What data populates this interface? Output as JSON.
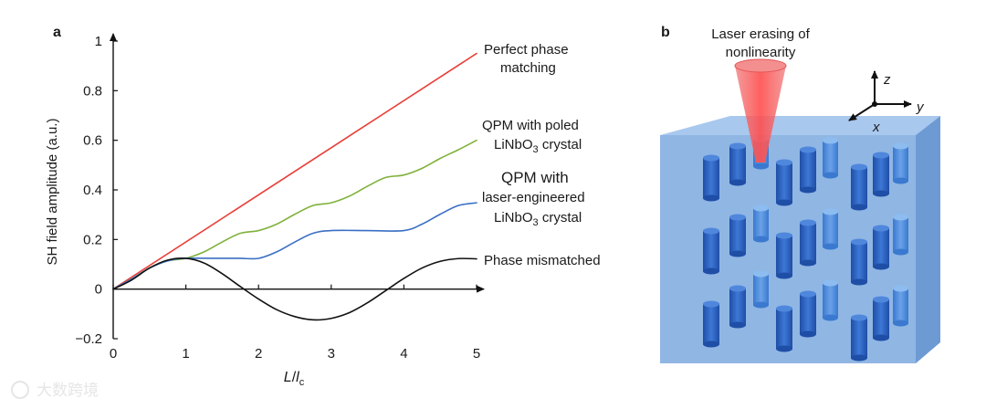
{
  "panels": {
    "a": "a",
    "b": "b"
  },
  "chart_data": {
    "type": "line",
    "xlabel": {
      "main": "L",
      "sep": "/",
      "main2": "l",
      "sub": "c"
    },
    "ylabel": "SH field amplitude (a.u.)",
    "xlim": [
      0,
      5
    ],
    "ylim": [
      -0.2,
      1.0
    ],
    "xticks": [
      "0",
      "1",
      "2",
      "3",
      "4",
      "5"
    ],
    "yticks": [
      {
        "v": 1.0,
        "t": "1"
      },
      {
        "v": 0.8,
        "t": "0.8"
      },
      {
        "v": 0.6,
        "t": "0.6"
      },
      {
        "v": 0.4,
        "t": "0.4"
      },
      {
        "v": 0.2,
        "t": "0.2"
      },
      {
        "v": 0.0,
        "t": "0"
      },
      {
        "v": -0.2,
        "t": "−0.2"
      }
    ],
    "series": [
      {
        "name": "Perfect phase matching",
        "color": "#e8413a",
        "points": [
          [
            0,
            0
          ],
          [
            5,
            0.95
          ]
        ]
      },
      {
        "name": "QPM with poled LiNbO3 crystal",
        "color": "#7fb13a",
        "points": [
          [
            0,
            0
          ],
          [
            0.25,
            0.04
          ],
          [
            0.5,
            0.085
          ],
          [
            0.75,
            0.114
          ],
          [
            1,
            0.124
          ],
          [
            1.25,
            0.15
          ],
          [
            1.5,
            0.19
          ],
          [
            1.75,
            0.225
          ],
          [
            2,
            0.236
          ],
          [
            2.25,
            0.262
          ],
          [
            2.5,
            0.302
          ],
          [
            2.75,
            0.337
          ],
          [
            3,
            0.348
          ],
          [
            3.25,
            0.375
          ],
          [
            3.5,
            0.415
          ],
          [
            3.75,
            0.45
          ],
          [
            4,
            0.46
          ],
          [
            4.25,
            0.487
          ],
          [
            4.5,
            0.527
          ],
          [
            4.75,
            0.562
          ],
          [
            5,
            0.6
          ]
        ]
      },
      {
        "name": "QPM with laser-engineered LiNbO3 crystal",
        "color": "#3a6fc4",
        "points": [
          [
            0,
            0
          ],
          [
            0.25,
            0.04
          ],
          [
            0.5,
            0.085
          ],
          [
            0.75,
            0.114
          ],
          [
            1,
            0.124
          ],
          [
            1.5,
            0.124
          ],
          [
            1.75,
            0.124
          ],
          [
            2,
            0.124
          ],
          [
            2.25,
            0.15
          ],
          [
            2.5,
            0.19
          ],
          [
            2.75,
            0.225
          ],
          [
            3,
            0.236
          ],
          [
            3.5,
            0.236
          ],
          [
            4,
            0.236
          ],
          [
            4.25,
            0.262
          ],
          [
            4.5,
            0.302
          ],
          [
            4.75,
            0.337
          ],
          [
            5,
            0.348
          ]
        ]
      },
      {
        "name": "Phase mismatched",
        "color": "#111111",
        "points": [
          [
            0,
            0
          ],
          [
            0.25,
            0.036
          ],
          [
            0.5,
            0.085
          ],
          [
            0.75,
            0.117
          ],
          [
            1,
            0.124
          ],
          [
            1.25,
            0.105
          ],
          [
            1.5,
            0.062
          ],
          [
            1.75,
            0.01
          ],
          [
            2,
            -0.04
          ],
          [
            2.25,
            -0.083
          ],
          [
            2.5,
            -0.111
          ],
          [
            2.75,
            -0.124
          ],
          [
            3,
            -0.118
          ],
          [
            3.25,
            -0.095
          ],
          [
            3.5,
            -0.055
          ],
          [
            3.75,
            -0.006
          ],
          [
            4,
            0.043
          ],
          [
            4.25,
            0.085
          ],
          [
            4.5,
            0.112
          ],
          [
            4.75,
            0.123
          ],
          [
            5,
            0.122
          ]
        ]
      }
    ],
    "annotations": {
      "perfect": [
        "Perfect phase",
        "matching"
      ],
      "poled_l1": "QPM with poled",
      "poled_l2": {
        "pre": "LiNbO",
        "sub": "3",
        "post": " crystal"
      },
      "laser_l1": "QPM with",
      "laser_l2": "laser-engineered",
      "laser_l3": {
        "pre": "LiNbO",
        "sub": "3",
        "post": " crystal"
      },
      "mismatch": "Phase mismatched"
    }
  },
  "schematic": {
    "title": [
      "Laser erasing of",
      "nonlinearity"
    ],
    "axes": {
      "z": "z",
      "y": "y",
      "x": "x"
    },
    "colors": {
      "block_front": "#90b6e4",
      "block_top": "#a9c8ee",
      "block_side": "#6e9ad4",
      "rod": "#2f64c2",
      "laser": "#f05050"
    }
  },
  "watermark": "大数跨境"
}
